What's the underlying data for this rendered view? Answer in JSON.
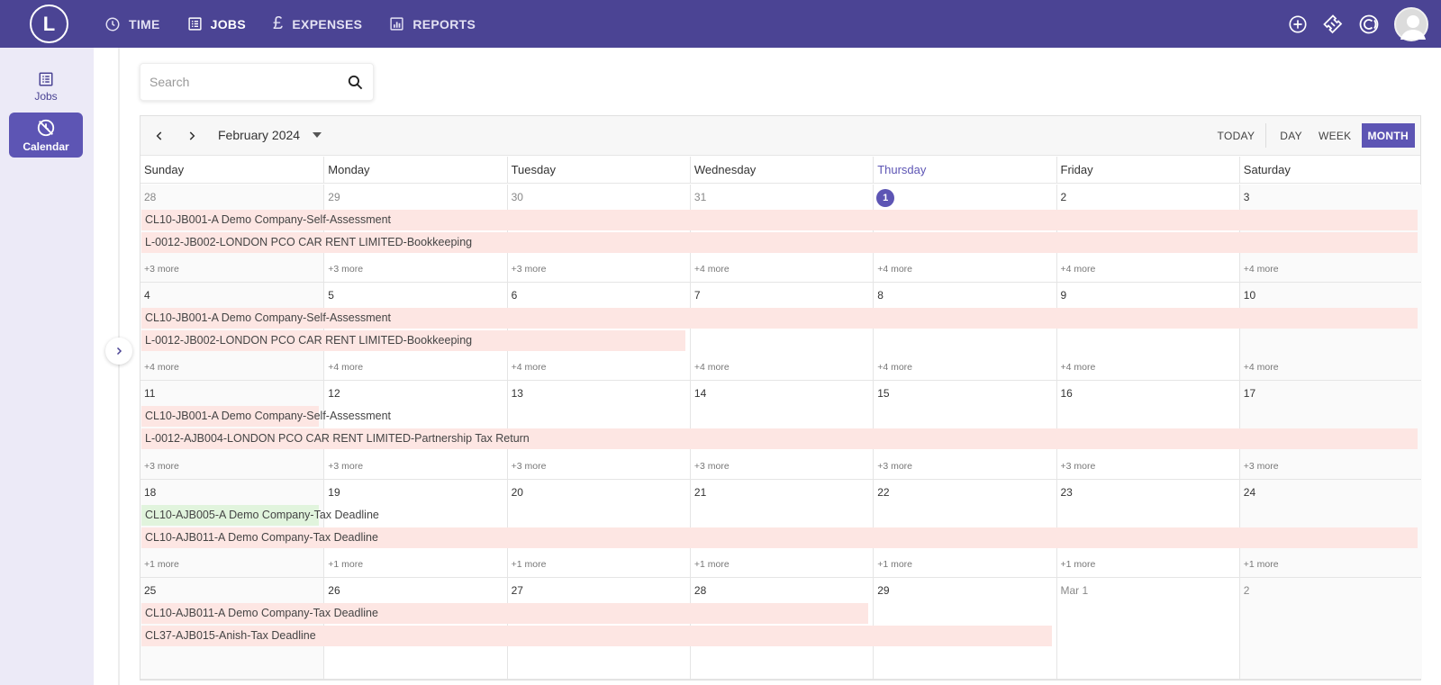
{
  "app": {
    "logo_letter": "L",
    "nav": [
      {
        "label": "TIME",
        "icon": "clock-icon",
        "active": false
      },
      {
        "label": "JOBS",
        "icon": "jobs-list-icon",
        "active": true
      },
      {
        "label": "EXPENSES",
        "icon": "pound-icon",
        "active": false
      },
      {
        "label": "REPORTS",
        "icon": "chart-icon",
        "active": false
      }
    ],
    "top_icons": [
      "add-circle-icon",
      "ticket-icon",
      "coin-icon",
      "avatar"
    ]
  },
  "sidebar": {
    "items": [
      {
        "label": "Jobs",
        "icon": "jobs-list-icon",
        "active": false
      },
      {
        "label": "Calendar",
        "icon": "calendar-clock-icon",
        "active": true
      }
    ]
  },
  "search": {
    "placeholder": "Search"
  },
  "calendar": {
    "month_label": "February 2024",
    "views": [
      {
        "label": "TODAY",
        "active": false
      },
      {
        "label": "DAY",
        "active": false
      },
      {
        "label": "WEEK",
        "active": false
      },
      {
        "label": "MONTH",
        "active": true
      }
    ],
    "weekdays": [
      "Sunday",
      "Monday",
      "Tuesday",
      "Wednesday",
      "Thursday",
      "Friday",
      "Saturday"
    ],
    "today_weekday_index": 4,
    "weeks": [
      {
        "days": [
          {
            "label": "28",
            "other": true
          },
          {
            "label": "29",
            "other": true
          },
          {
            "label": "30",
            "other": true
          },
          {
            "label": "31",
            "other": true
          },
          {
            "label": "1",
            "today": true
          },
          {
            "label": "2"
          },
          {
            "label": "3"
          }
        ],
        "events": [
          {
            "title": "CL10-JB001-A Demo Company-Self-Assessment",
            "start": 0,
            "span": 7,
            "row": 0,
            "color": "pink"
          },
          {
            "title": "L-0012-JB002-LONDON PCO CAR RENT LIMITED-Bookkeeping",
            "start": 0,
            "span": 7,
            "row": 1,
            "color": "pink"
          }
        ],
        "more": [
          "+3 more",
          "+3 more",
          "+3 more",
          "+4 more",
          "+4 more",
          "+4 more",
          "+4 more"
        ]
      },
      {
        "days": [
          {
            "label": "4"
          },
          {
            "label": "5"
          },
          {
            "label": "6"
          },
          {
            "label": "7"
          },
          {
            "label": "8"
          },
          {
            "label": "9"
          },
          {
            "label": "10"
          }
        ],
        "events": [
          {
            "title": "CL10-JB001-A Demo Company-Self-Assessment",
            "start": 0,
            "span": 7,
            "row": 0,
            "color": "pink"
          },
          {
            "title": "L-0012-JB002-LONDON PCO CAR RENT LIMITED-Bookkeeping",
            "start": 0,
            "span": 3,
            "row": 1,
            "color": "pink"
          }
        ],
        "more": [
          "+4 more",
          "+4 more",
          "+4 more",
          "+4 more",
          "+4 more",
          "+4 more",
          "+4 more"
        ]
      },
      {
        "days": [
          {
            "label": "11"
          },
          {
            "label": "12"
          },
          {
            "label": "13"
          },
          {
            "label": "14"
          },
          {
            "label": "15"
          },
          {
            "label": "16"
          },
          {
            "label": "17"
          }
        ],
        "events": [
          {
            "title": "CL10-JB001-A Demo Company-Self-Assessment",
            "start": 0,
            "span": 1,
            "row": 0,
            "color": "pink"
          },
          {
            "title": "L-0012-AJB004-LONDON PCO CAR RENT LIMITED-Partnership Tax Return",
            "start": 0,
            "span": 7,
            "row": 1,
            "color": "pink"
          }
        ],
        "more": [
          "+3 more",
          "+3 more",
          "+3 more",
          "+3 more",
          "+3 more",
          "+3 more",
          "+3 more"
        ]
      },
      {
        "days": [
          {
            "label": "18"
          },
          {
            "label": "19"
          },
          {
            "label": "20"
          },
          {
            "label": "21"
          },
          {
            "label": "22"
          },
          {
            "label": "23"
          },
          {
            "label": "24"
          }
        ],
        "events": [
          {
            "title": "CL10-AJB005-A Demo Company-Tax Deadline",
            "start": 0,
            "span": 1,
            "row": 0,
            "color": "green"
          },
          {
            "title": "CL10-AJB011-A Demo Company-Tax Deadline",
            "start": 0,
            "span": 7,
            "row": 1,
            "color": "pink"
          }
        ],
        "more": [
          "+1 more",
          "+1 more",
          "+1 more",
          "+1 more",
          "+1 more",
          "+1 more",
          "+1 more"
        ]
      },
      {
        "days": [
          {
            "label": "25"
          },
          {
            "label": "26"
          },
          {
            "label": "27"
          },
          {
            "label": "28"
          },
          {
            "label": "29"
          },
          {
            "label": "Mar 1",
            "other": true
          },
          {
            "label": "2",
            "other": true
          }
        ],
        "events": [
          {
            "title": "CL10-AJB011-A Demo Company-Tax Deadline",
            "start": 0,
            "span": 4,
            "row": 0,
            "color": "pink"
          },
          {
            "title": "CL37-AJB015-Anish-Tax Deadline",
            "start": 0,
            "span": 5,
            "row": 1,
            "color": "pink"
          }
        ],
        "more": []
      }
    ]
  }
}
